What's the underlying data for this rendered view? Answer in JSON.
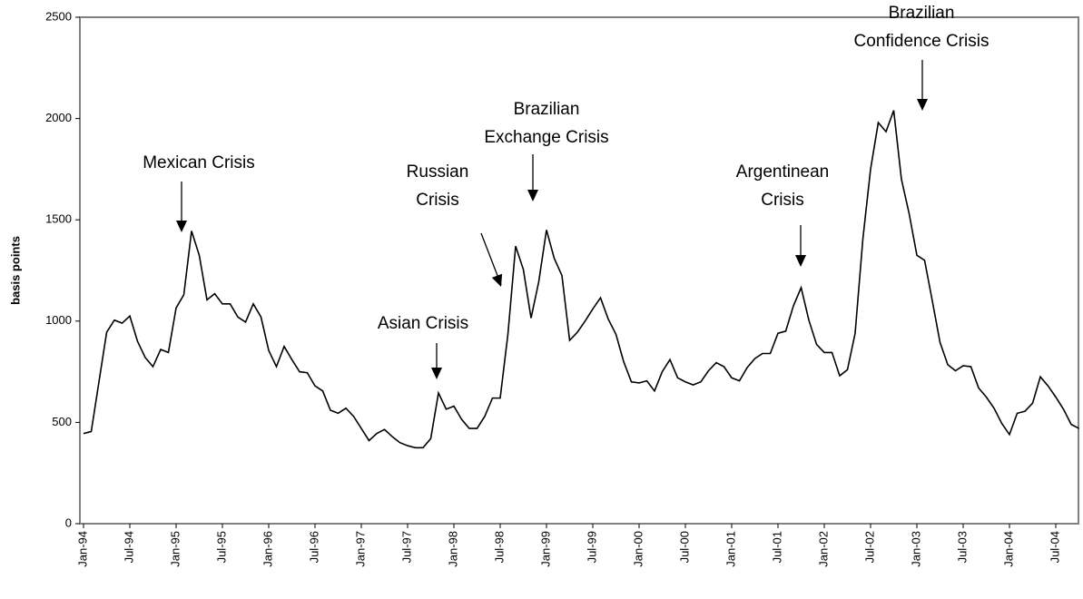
{
  "chart_data": {
    "type": "line",
    "y_label": "basis points",
    "categories": [
      "Jan-94",
      null,
      null,
      null,
      null,
      null,
      "Jul-94",
      null,
      null,
      null,
      null,
      null,
      "Jan-95",
      null,
      null,
      null,
      null,
      null,
      "Jul-95",
      null,
      null,
      null,
      null,
      null,
      "Jan-96",
      null,
      null,
      null,
      null,
      null,
      "Jul-96",
      null,
      null,
      null,
      null,
      null,
      "Jan-97",
      null,
      null,
      null,
      null,
      null,
      "Jul-97",
      null,
      null,
      null,
      null,
      null,
      "Jan-98",
      null,
      null,
      null,
      null,
      null,
      "Jul-98",
      null,
      null,
      null,
      null,
      null,
      "Jan-99",
      null,
      null,
      null,
      null,
      null,
      "Jul-99",
      null,
      null,
      null,
      null,
      null,
      "Jan-00",
      null,
      null,
      null,
      null,
      null,
      "Jul-00",
      null,
      null,
      null,
      null,
      null,
      "Jan-01",
      null,
      null,
      null,
      null,
      null,
      "Jul-01",
      null,
      null,
      null,
      null,
      null,
      "Jan-02",
      null,
      null,
      null,
      null,
      null,
      "Jul-02",
      null,
      null,
      null,
      null,
      null,
      "Jan-03",
      null,
      null,
      null,
      null,
      null,
      "Jul-03",
      null,
      null,
      null,
      null,
      null,
      "Jan-04",
      null,
      null,
      null,
      null,
      null,
      "Jul-04",
      null,
      null,
      null
    ],
    "values": [
      445,
      455,
      700,
      945,
      1005,
      990,
      1025,
      900,
      820,
      775,
      860,
      845,
      1065,
      1130,
      1445,
      1325,
      1105,
      1135,
      1085,
      1085,
      1020,
      995,
      1085,
      1020,
      855,
      775,
      875,
      810,
      750,
      745,
      680,
      655,
      560,
      545,
      570,
      530,
      470,
      410,
      445,
      465,
      430,
      400,
      385,
      375,
      375,
      420,
      645,
      565,
      580,
      515,
      470,
      470,
      530,
      620,
      620,
      935,
      1370,
      1255,
      1015,
      1195,
      1450,
      1310,
      1225,
      905,
      945,
      1000,
      1060,
      1115,
      1010,
      935,
      800,
      700,
      695,
      705,
      655,
      750,
      810,
      720,
      700,
      685,
      700,
      755,
      795,
      775,
      720,
      705,
      770,
      815,
      840,
      840,
      940,
      950,
      1075,
      1165,
      1005,
      885,
      845,
      845,
      730,
      760,
      940,
      1405,
      1750,
      1980,
      1935,
      2040,
      1700,
      1530,
      1325,
      1300,
      1100,
      895,
      785,
      755,
      780,
      775,
      670,
      625,
      570,
      495,
      440,
      545,
      555,
      595,
      725,
      680,
      625,
      565,
      490,
      470
    ],
    "color": "#000000",
    "ylim": [
      0,
      2500
    ],
    "yticks": [
      0,
      500,
      1000,
      1500,
      2000,
      2500
    ],
    "grid": false,
    "annotations": [
      [
        "Mexican Crisis"
      ],
      [
        "Asian Crisis"
      ],
      [
        "Russian",
        "Crisis"
      ],
      [
        "Brazilian",
        "Exchange Crisis"
      ],
      [
        "Argentinean",
        "Crisis"
      ],
      [
        "Brazilian",
        "Confidence Crisis"
      ]
    ]
  }
}
